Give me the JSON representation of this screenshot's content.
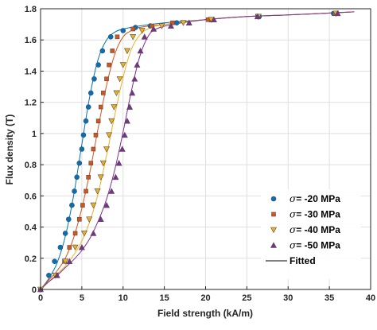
{
  "chart_data": {
    "type": "scatter",
    "xlabel": "Field strength (kA/m)",
    "ylabel": "Flux density (T)",
    "xlim": [
      0,
      40
    ],
    "ylim": [
      0,
      1.8
    ],
    "xticks": [
      0,
      5,
      10,
      15,
      20,
      25,
      30,
      35,
      40
    ],
    "yticks": [
      0,
      0.2,
      0.4,
      0.6,
      0.8,
      1,
      1.2,
      1.4,
      1.6,
      1.8
    ],
    "grid": true,
    "legend_position": "bottom-right",
    "series": [
      {
        "name": "σ= -20 MPa",
        "label_symbol": "σ",
        "label_rest": "= -20 MPa",
        "marker": "circle",
        "color": "#0072BD",
        "line_color": "#0072BD",
        "points": [
          [
            0,
            0
          ],
          [
            1,
            0.09
          ],
          [
            1.7,
            0.18
          ],
          [
            2.4,
            0.27
          ],
          [
            3,
            0.36
          ],
          [
            3.4,
            0.45
          ],
          [
            3.8,
            0.54
          ],
          [
            4.1,
            0.63
          ],
          [
            4.4,
            0.72
          ],
          [
            4.7,
            0.81
          ],
          [
            5,
            0.9
          ],
          [
            5.2,
            0.99
          ],
          [
            5.5,
            1.08
          ],
          [
            5.8,
            1.17
          ],
          [
            6.1,
            1.26
          ],
          [
            6.5,
            1.35
          ],
          [
            7,
            1.44
          ],
          [
            7.5,
            1.53
          ],
          [
            8.5,
            1.62
          ],
          [
            10,
            1.66
          ],
          [
            11.5,
            1.68
          ],
          [
            13.3,
            1.69
          ],
          [
            16.5,
            1.71
          ],
          [
            20.5,
            1.73
          ],
          [
            26.5,
            1.75
          ],
          [
            35.5,
            1.77
          ]
        ],
        "fit": [
          [
            0,
            0
          ],
          [
            1,
            0.07
          ],
          [
            2,
            0.17
          ],
          [
            3,
            0.34
          ],
          [
            4,
            0.6
          ],
          [
            5,
            0.93
          ],
          [
            6,
            1.25
          ],
          [
            7,
            1.48
          ],
          [
            8,
            1.6
          ],
          [
            9,
            1.65
          ],
          [
            10,
            1.67
          ],
          [
            12,
            1.69
          ],
          [
            15,
            1.71
          ],
          [
            20,
            1.73
          ],
          [
            25,
            1.75
          ],
          [
            30,
            1.76
          ],
          [
            38,
            1.78
          ]
        ]
      },
      {
        "name": "σ= -30 MPa",
        "label_symbol": "σ",
        "label_rest": "= -30 MPa",
        "marker": "square",
        "color": "#D95319",
        "line_color": "#D95319",
        "points": [
          [
            0,
            0
          ],
          [
            1.9,
            0.09
          ],
          [
            2.9,
            0.18
          ],
          [
            3.5,
            0.27
          ],
          [
            4.2,
            0.36
          ],
          [
            4.7,
            0.45
          ],
          [
            5.1,
            0.54
          ],
          [
            5.5,
            0.63
          ],
          [
            5.8,
            0.72
          ],
          [
            6.1,
            0.81
          ],
          [
            6.4,
            0.9
          ],
          [
            6.7,
            0.99
          ],
          [
            7,
            1.08
          ],
          [
            7.3,
            1.17
          ],
          [
            7.6,
            1.26
          ],
          [
            8,
            1.35
          ],
          [
            8.3,
            1.44
          ],
          [
            8.7,
            1.53
          ],
          [
            9.3,
            1.62
          ],
          [
            11.2,
            1.67
          ],
          [
            13.5,
            1.69
          ],
          [
            16,
            1.71
          ],
          [
            20.3,
            1.73
          ],
          [
            26.3,
            1.75
          ],
          [
            35.7,
            1.77
          ]
        ],
        "fit": [
          [
            0,
            0
          ],
          [
            1,
            0.06
          ],
          [
            2,
            0.12
          ],
          [
            3,
            0.2
          ],
          [
            4,
            0.33
          ],
          [
            5,
            0.52
          ],
          [
            6,
            0.76
          ],
          [
            7,
            1.04
          ],
          [
            8,
            1.31
          ],
          [
            9,
            1.51
          ],
          [
            10,
            1.62
          ],
          [
            11,
            1.66
          ],
          [
            12,
            1.68
          ],
          [
            15,
            1.7
          ],
          [
            20,
            1.73
          ],
          [
            25,
            1.75
          ],
          [
            30,
            1.76
          ],
          [
            38,
            1.78
          ]
        ]
      },
      {
        "name": "σ= -40 MPa",
        "label_symbol": "σ",
        "label_rest": "= -40 MPa",
        "marker": "triangle-down",
        "color": "#EDB120",
        "line_color": "#EDB120",
        "points": [
          [
            0,
            0
          ],
          [
            1.8,
            0.09
          ],
          [
            3,
            0.18
          ],
          [
            4.2,
            0.27
          ],
          [
            5.3,
            0.36
          ],
          [
            5.9,
            0.45
          ],
          [
            6.4,
            0.54
          ],
          [
            6.9,
            0.63
          ],
          [
            7.3,
            0.72
          ],
          [
            7.6,
            0.81
          ],
          [
            8,
            0.9
          ],
          [
            8.3,
            0.99
          ],
          [
            8.6,
            1.08
          ],
          [
            8.9,
            1.17
          ],
          [
            9.2,
            1.26
          ],
          [
            9.6,
            1.35
          ],
          [
            10,
            1.44
          ],
          [
            10.5,
            1.53
          ],
          [
            11.2,
            1.62
          ],
          [
            12.3,
            1.66
          ],
          [
            14.7,
            1.69
          ],
          [
            17.3,
            1.71
          ],
          [
            20.7,
            1.73
          ],
          [
            26.4,
            1.75
          ],
          [
            35.8,
            1.77
          ]
        ],
        "fit": [
          [
            0,
            0
          ],
          [
            1,
            0.05
          ],
          [
            2,
            0.1
          ],
          [
            3,
            0.15
          ],
          [
            4,
            0.22
          ],
          [
            5,
            0.31
          ],
          [
            6,
            0.44
          ],
          [
            7,
            0.62
          ],
          [
            8,
            0.86
          ],
          [
            9,
            1.12
          ],
          [
            10,
            1.36
          ],
          [
            11,
            1.54
          ],
          [
            12,
            1.63
          ],
          [
            13,
            1.67
          ],
          [
            15,
            1.7
          ],
          [
            20,
            1.73
          ],
          [
            25,
            1.75
          ],
          [
            30,
            1.76
          ],
          [
            38,
            1.78
          ]
        ]
      },
      {
        "name": "σ= -50 MPa",
        "label_symbol": "σ",
        "label_rest": "= -50 MPa",
        "marker": "triangle-up",
        "color": "#7E2F8E",
        "line_color": "#7E2F8E",
        "points": [
          [
            0,
            0
          ],
          [
            2,
            0.09
          ],
          [
            3.5,
            0.18
          ],
          [
            5,
            0.27
          ],
          [
            6.4,
            0.36
          ],
          [
            7.3,
            0.45
          ],
          [
            8,
            0.54
          ],
          [
            8.6,
            0.63
          ],
          [
            9.1,
            0.72
          ],
          [
            9.5,
            0.81
          ],
          [
            9.9,
            0.9
          ],
          [
            10.2,
            0.99
          ],
          [
            10.5,
            1.08
          ],
          [
            10.8,
            1.17
          ],
          [
            11.1,
            1.26
          ],
          [
            11.4,
            1.35
          ],
          [
            11.7,
            1.44
          ],
          [
            12.1,
            1.53
          ],
          [
            12.6,
            1.62
          ],
          [
            13.7,
            1.67
          ],
          [
            15.8,
            1.69
          ],
          [
            18,
            1.71
          ],
          [
            21,
            1.73
          ],
          [
            26.3,
            1.75
          ],
          [
            36,
            1.77
          ]
        ],
        "fit": [
          [
            0,
            0
          ],
          [
            1,
            0.05
          ],
          [
            2,
            0.09
          ],
          [
            3,
            0.14
          ],
          [
            4,
            0.19
          ],
          [
            5,
            0.25
          ],
          [
            6,
            0.33
          ],
          [
            7,
            0.44
          ],
          [
            8,
            0.58
          ],
          [
            9,
            0.77
          ],
          [
            10,
            1.01
          ],
          [
            11,
            1.27
          ],
          [
            12,
            1.49
          ],
          [
            13,
            1.62
          ],
          [
            14,
            1.67
          ],
          [
            16,
            1.7
          ],
          [
            20,
            1.73
          ],
          [
            25,
            1.75
          ],
          [
            30,
            1.76
          ],
          [
            38,
            1.78
          ]
        ]
      }
    ],
    "fit_legend": {
      "name": "Fitted",
      "color": "#000000"
    }
  }
}
